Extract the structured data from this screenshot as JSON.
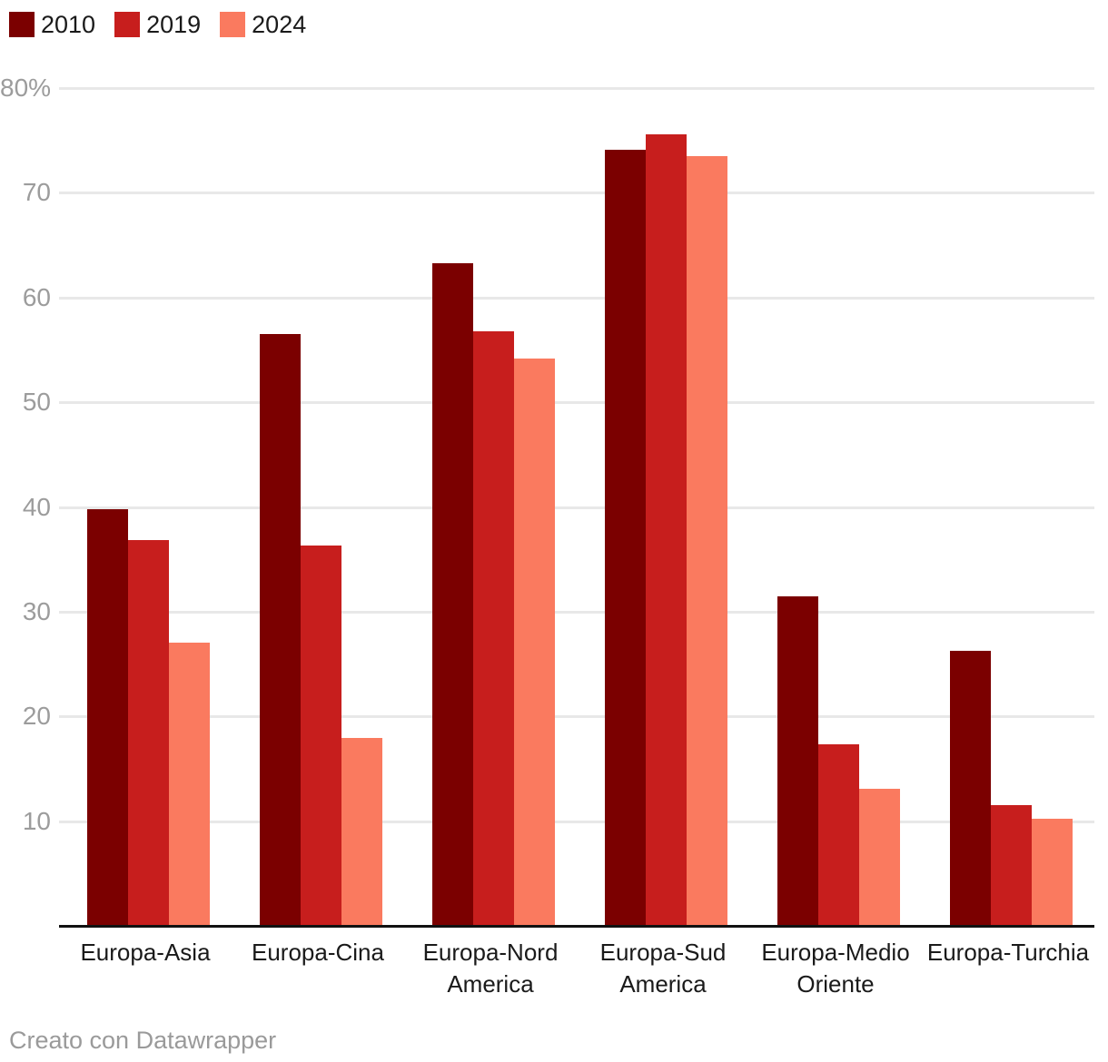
{
  "page": {
    "background": "#ffffff"
  },
  "footer": {
    "text": "Creato con Datawrapper"
  },
  "style": {
    "gridline_color": "#e8e8e8",
    "axis_color": "#111111",
    "tick_label_color": "#9c9c9c",
    "category_label_color": "#1a1a1a"
  },
  "chart_data": {
    "type": "bar",
    "title": "",
    "unit": "%",
    "categories": [
      "Europa-Asia",
      "Europa-Cina",
      "Europa-Nord America",
      "Europa-Sud America",
      "Europa-Medio Oriente",
      "Europa-Turchia"
    ],
    "series": [
      {
        "name": "2010",
        "color": "#7b0000",
        "values": [
          39.8,
          56.5,
          63.3,
          74.1,
          31.5,
          26.3
        ]
      },
      {
        "name": "2019",
        "color": "#c71e1d",
        "values": [
          36.8,
          36.3,
          56.8,
          75.6,
          17.3,
          11.5
        ]
      },
      {
        "name": "2024",
        "color": "#fa7a5f",
        "values": [
          27.0,
          17.9,
          54.2,
          73.5,
          13.1,
          10.2
        ]
      }
    ],
    "ylim": [
      0,
      80
    ],
    "yticks": [
      {
        "value": 10,
        "label": "10"
      },
      {
        "value": 20,
        "label": "20"
      },
      {
        "value": 30,
        "label": "30"
      },
      {
        "value": 40,
        "label": "40"
      },
      {
        "value": 50,
        "label": "50"
      },
      {
        "value": 60,
        "label": "60"
      },
      {
        "value": 70,
        "label": "70"
      },
      {
        "value": 80,
        "label": "80%"
      }
    ],
    "grid": true,
    "legend_position": "top-left",
    "xlabel": "",
    "ylabel": ""
  }
}
